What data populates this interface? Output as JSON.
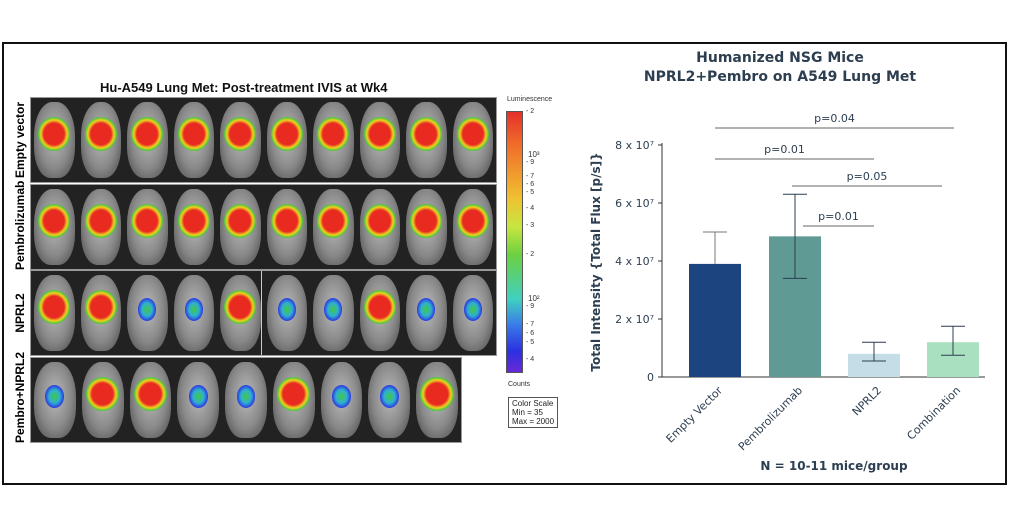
{
  "ivis": {
    "title": "Hu-A549 Lung Met: Post-treatment IVIS at Wk4",
    "rows": [
      "Empty vector",
      "Pembrolizumab",
      "NPRL2",
      "Pembro+NPRL2"
    ],
    "colorbar": {
      "title": "Luminescence",
      "unit": "Counts",
      "tick_major": [
        "10³",
        "10²"
      ],
      "minor_upper": [
        "2",
        "9",
        "7",
        "6",
        "5",
        "4",
        "3",
        "2"
      ],
      "minor_lower": [
        "9",
        "7",
        "6",
        "5",
        "4"
      ],
      "scale_title": "Color Scale",
      "min": "Min = 35",
      "max": "Max = 2000"
    }
  },
  "chart_data": {
    "type": "bar",
    "title": "Humanized NSG Mice",
    "subtitle": "NPRL2+Pembro on A549 Lung Met",
    "categories": [
      "Empty Vector",
      "Pembrolizumab",
      "NPRL2",
      "Combination"
    ],
    "values": [
      39000000.0,
      48500000.0,
      8000000.0,
      12000000.0
    ],
    "error_low": [
      39000000.0,
      34000000.0,
      5500000.0,
      7500000.0
    ],
    "error_high": [
      50000000.0,
      63000000.0,
      12000000.0,
      17500000.0
    ],
    "colors": [
      "#1c4580",
      "#5f9b94",
      "#c5dde6",
      "#a9e0bf"
    ],
    "ylabel": "Total Intensity {Total Flux [p/s]}",
    "xlabel": "N = 10-11 mice/group",
    "ylim": [
      0,
      80000000.0
    ],
    "yticks": [
      {
        "v": 0,
        "label": "0"
      },
      {
        "v": 20000000.0,
        "label": "2 x 10⁷"
      },
      {
        "v": 40000000.0,
        "label": "4 x 10⁷"
      },
      {
        "v": 60000000.0,
        "label": "6 x 10⁷"
      },
      {
        "v": 80000000.0,
        "label": "8 x 10⁷"
      }
    ],
    "comparisons": [
      {
        "from": 0,
        "to": 3,
        "label": "p=0.04"
      },
      {
        "from": 0,
        "to": 2,
        "label": "p=0.01"
      },
      {
        "from": 1,
        "to": 3,
        "label": "p=0.05"
      },
      {
        "from": 1,
        "to": 2,
        "label": "p=0.01"
      }
    ],
    "grid": false
  }
}
